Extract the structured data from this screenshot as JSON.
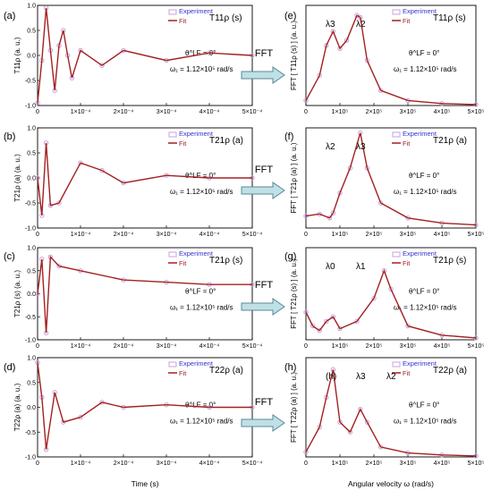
{
  "fft_arrow_label": "FFT",
  "left_xlabel": "Time (s)",
  "right_xlabel": "Angular velocity  ω  (rad/s)",
  "legend": {
    "experiment": "Experiment",
    "fit": "Fit"
  },
  "annotations": {
    "theta": "θ^LF = 0°",
    "omega": "ω₁ = 1.12×10⁵ rad/s"
  },
  "colors": {
    "experiment": "#c9a0dc",
    "fit": "#a32020",
    "arrow": "#bfe0e6"
  },
  "chart_data": [
    {
      "panel": "(a)",
      "type": "line",
      "title": "T11ρ (s)",
      "ylabel": "T11ρ (a. u.)",
      "xlim": [
        0,
        0.0005
      ],
      "ylim": [
        -1.0,
        1.0
      ],
      "x_tick_labels": [
        "0",
        "1×10⁻⁴",
        "2×10⁻⁴",
        "3×10⁻⁴",
        "4×10⁻⁴",
        "5×10⁻⁴"
      ],
      "y_tick_labels": [
        "1.0",
        "0.5",
        "0.0",
        "-0.5",
        "-1.0"
      ],
      "series": [
        {
          "name": "Experiment",
          "style": "markers",
          "x": [
            0,
            1e-05,
            2e-05,
            3e-05,
            4e-05,
            5e-05,
            6e-05,
            7e-05,
            8e-05,
            0.0001,
            0.00015,
            0.0002,
            0.0003,
            0.0004,
            0.0005
          ],
          "y": [
            -0.95,
            -0.1,
            0.95,
            0.1,
            -0.7,
            0.2,
            0.5,
            0.0,
            -0.45,
            0.1,
            -0.2,
            0.1,
            -0.1,
            0.05,
            0.0
          ]
        },
        {
          "name": "Fit",
          "style": "line",
          "x": [
            0,
            1e-05,
            2e-05,
            3e-05,
            4e-05,
            5e-05,
            6e-05,
            7e-05,
            8e-05,
            0.0001,
            0.00015,
            0.0002,
            0.0003,
            0.0004,
            0.0005
          ],
          "y": [
            -0.95,
            -0.1,
            0.95,
            0.1,
            -0.7,
            0.2,
            0.5,
            0.0,
            -0.45,
            0.1,
            -0.2,
            0.1,
            -0.1,
            0.05,
            0.0
          ]
        }
      ]
    },
    {
      "panel": "(b)",
      "type": "line",
      "title": "T21ρ (a)",
      "ylabel": "T21ρ (a) (a. u.)",
      "xlim": [
        0,
        0.0005
      ],
      "ylim": [
        -1.0,
        1.0
      ],
      "x_tick_labels": [
        "0",
        "1×10⁻⁴",
        "2×10⁻⁴",
        "3×10⁻⁴",
        "4×10⁻⁴",
        "5×10⁻⁴"
      ],
      "y_tick_labels": [
        "1.0",
        "0.5",
        "0.0",
        "-0.5",
        "-1.0"
      ],
      "series": [
        {
          "name": "Experiment",
          "style": "markers",
          "x": [
            0,
            1e-05,
            2e-05,
            3e-05,
            5e-05,
            0.0001,
            0.00015,
            0.0002,
            0.0003,
            0.0004,
            0.0005
          ],
          "y": [
            0.0,
            -0.75,
            0.7,
            -0.55,
            -0.5,
            0.3,
            0.15,
            -0.1,
            0.05,
            0.0,
            0.0
          ]
        },
        {
          "name": "Fit",
          "style": "line",
          "x": [
            0,
            1e-05,
            2e-05,
            3e-05,
            5e-05,
            0.0001,
            0.00015,
            0.0002,
            0.0003,
            0.0004,
            0.0005
          ],
          "y": [
            0.0,
            -0.75,
            0.7,
            -0.55,
            -0.5,
            0.3,
            0.15,
            -0.1,
            0.05,
            0.0,
            0.0
          ]
        }
      ]
    },
    {
      "panel": "(c)",
      "type": "line",
      "title": "T21ρ (s)",
      "ylabel": "T21ρ (s) (a. u.)",
      "xlim": [
        0,
        0.0005
      ],
      "ylim": [
        -1.0,
        1.0
      ],
      "x_tick_labels": [
        "0",
        "1×10⁻⁴",
        "2×10⁻⁴",
        "3×10⁻⁴",
        "4×10⁻⁴",
        "5×10⁻⁴"
      ],
      "y_tick_labels": [
        "1.0",
        "0.5",
        "0.0",
        "-0.5",
        "-1.0"
      ],
      "series": [
        {
          "name": "Experiment",
          "style": "markers",
          "x": [
            0,
            1e-05,
            2e-05,
            3e-05,
            5e-05,
            0.0001,
            0.0002,
            0.0003,
            0.0004,
            0.0005
          ],
          "y": [
            0.0,
            0.75,
            -0.85,
            0.8,
            0.6,
            0.5,
            0.3,
            0.25,
            0.2,
            0.2
          ]
        },
        {
          "name": "Fit",
          "style": "line",
          "x": [
            0,
            1e-05,
            2e-05,
            3e-05,
            5e-05,
            0.0001,
            0.0002,
            0.0003,
            0.0004,
            0.0005
          ],
          "y": [
            0.0,
            0.75,
            -0.85,
            0.8,
            0.6,
            0.5,
            0.3,
            0.25,
            0.2,
            0.2
          ]
        }
      ]
    },
    {
      "panel": "(d)",
      "type": "line",
      "title": "T22ρ (a)",
      "ylabel": "T22ρ (a) (a. u.)",
      "xlim": [
        0,
        0.0005
      ],
      "ylim": [
        -1.0,
        1.0
      ],
      "x_tick_labels": [
        "0",
        "1×10⁻⁴",
        "2×10⁻⁴",
        "3×10⁻⁴",
        "4×10⁻⁴",
        "5×10⁻⁴"
      ],
      "y_tick_labels": [
        "1.0",
        "0.5",
        "0.0",
        "-0.5",
        "-1.0"
      ],
      "series": [
        {
          "name": "Experiment",
          "style": "markers",
          "x": [
            0,
            1e-05,
            2e-05,
            4e-05,
            6e-05,
            0.0001,
            0.00015,
            0.0002,
            0.0003,
            0.0004,
            0.0005
          ],
          "y": [
            0.9,
            0.2,
            -0.85,
            0.3,
            -0.3,
            -0.2,
            0.1,
            0.0,
            0.05,
            0.0,
            0.0
          ]
        },
        {
          "name": "Fit",
          "style": "line",
          "x": [
            0,
            1e-05,
            2e-05,
            4e-05,
            6e-05,
            0.0001,
            0.00015,
            0.0002,
            0.0003,
            0.0004,
            0.0005
          ],
          "y": [
            0.9,
            0.2,
            -0.85,
            0.3,
            -0.3,
            -0.2,
            0.1,
            0.0,
            0.05,
            0.0,
            0.0
          ]
        }
      ]
    },
    {
      "panel": "(e)",
      "type": "line",
      "title": "T11ρ (s)",
      "ylabel": "FFT [ T11ρ (s) ]  (a. u.)",
      "xlim": [
        0,
        500000
      ],
      "ylim": [
        0,
        1.0
      ],
      "x_tick_labels": [
        "0",
        "1×10⁵",
        "2×10⁵",
        "3×10⁵",
        "4×10⁵",
        "5×10⁵"
      ],
      "peaks": [
        "λ3",
        "λ2"
      ],
      "series": [
        {
          "name": "Experiment",
          "style": "markers",
          "x": [
            0,
            40000,
            60000,
            80000,
            100000,
            120000,
            150000,
            160000,
            180000,
            220000,
            300000,
            400000,
            500000
          ],
          "y": [
            0.05,
            0.3,
            0.6,
            0.74,
            0.57,
            0.65,
            0.9,
            0.88,
            0.45,
            0.15,
            0.05,
            0.02,
            0.01
          ]
        },
        {
          "name": "Fit",
          "style": "line",
          "x": [
            0,
            40000,
            60000,
            80000,
            100000,
            120000,
            150000,
            160000,
            180000,
            220000,
            300000,
            400000,
            500000
          ],
          "y": [
            0.05,
            0.3,
            0.6,
            0.74,
            0.57,
            0.65,
            0.9,
            0.88,
            0.45,
            0.15,
            0.05,
            0.02,
            0.01
          ]
        }
      ]
    },
    {
      "panel": "(f)",
      "type": "line",
      "title": "T21ρ (a)",
      "ylabel": "FFT [ T21ρ (a) ]  (a. u.)",
      "xlim": [
        0,
        500000
      ],
      "ylim": [
        0,
        1.0
      ],
      "x_tick_labels": [
        "0",
        "1×10⁵",
        "2×10⁵",
        "3×10⁵",
        "4×10⁵",
        "5×10⁵"
      ],
      "peaks": [
        "λ2",
        "λ3"
      ],
      "series": [
        {
          "name": "Experiment",
          "style": "markers",
          "x": [
            0,
            40000,
            70000,
            80000,
            100000,
            130000,
            160000,
            180000,
            220000,
            300000,
            400000,
            500000
          ],
          "y": [
            0.12,
            0.14,
            0.1,
            0.15,
            0.35,
            0.6,
            0.95,
            0.6,
            0.25,
            0.1,
            0.05,
            0.03
          ]
        },
        {
          "name": "Fit",
          "style": "line",
          "x": [
            0,
            40000,
            70000,
            80000,
            100000,
            130000,
            160000,
            180000,
            220000,
            300000,
            400000,
            500000
          ],
          "y": [
            0.12,
            0.14,
            0.1,
            0.15,
            0.35,
            0.6,
            0.95,
            0.6,
            0.25,
            0.1,
            0.05,
            0.03
          ]
        }
      ]
    },
    {
      "panel": "(g)",
      "type": "line",
      "title": "T21ρ (s)",
      "ylabel": "FFT [ T21ρ (s) ]  (a. u.)",
      "xlim": [
        0,
        500000
      ],
      "ylim": [
        0,
        1.0
      ],
      "x_tick_labels": [
        "0",
        "1×10⁵",
        "2×10⁵",
        "3×10⁵",
        "4×10⁵",
        "5×10⁵"
      ],
      "peaks": [
        "λ0",
        "λ1"
      ],
      "series": [
        {
          "name": "Experiment",
          "style": "markers",
          "x": [
            0,
            20000,
            40000,
            60000,
            80000,
            100000,
            150000,
            200000,
            230000,
            250000,
            300000,
            400000,
            500000
          ],
          "y": [
            0.3,
            0.15,
            0.1,
            0.2,
            0.25,
            0.12,
            0.2,
            0.45,
            0.75,
            0.55,
            0.15,
            0.05,
            0.02
          ]
        },
        {
          "name": "Fit",
          "style": "line",
          "x": [
            0,
            20000,
            40000,
            60000,
            80000,
            100000,
            150000,
            200000,
            230000,
            250000,
            300000,
            400000,
            500000
          ],
          "y": [
            0.3,
            0.15,
            0.1,
            0.2,
            0.25,
            0.12,
            0.2,
            0.45,
            0.75,
            0.55,
            0.15,
            0.05,
            0.02
          ]
        }
      ]
    },
    {
      "panel": "(h)",
      "type": "line",
      "title": "T22ρ (a)",
      "ylabel": "FFT [ T22ρ (a) ]  (a. u.)",
      "xlim": [
        0,
        500000
      ],
      "ylim": [
        0,
        1.0
      ],
      "x_tick_labels": [
        "0",
        "1×10⁵",
        "2×10⁵",
        "3×10⁵",
        "4×10⁵",
        "5×10⁵"
      ],
      "peaks": [
        "(h)",
        "λ3",
        "λ2"
      ],
      "series": [
        {
          "name": "Experiment",
          "style": "markers",
          "x": [
            0,
            40000,
            60000,
            80000,
            100000,
            130000,
            160000,
            180000,
            220000,
            300000,
            400000,
            500000
          ],
          "y": [
            0.05,
            0.3,
            0.6,
            0.88,
            0.35,
            0.25,
            0.48,
            0.35,
            0.1,
            0.04,
            0.02,
            0.01
          ]
        },
        {
          "name": "Fit",
          "style": "line",
          "x": [
            0,
            40000,
            60000,
            80000,
            100000,
            130000,
            160000,
            180000,
            220000,
            300000,
            400000,
            500000
          ],
          "y": [
            0.05,
            0.3,
            0.6,
            0.88,
            0.35,
            0.25,
            0.48,
            0.35,
            0.1,
            0.04,
            0.02,
            0.01
          ]
        }
      ]
    }
  ]
}
